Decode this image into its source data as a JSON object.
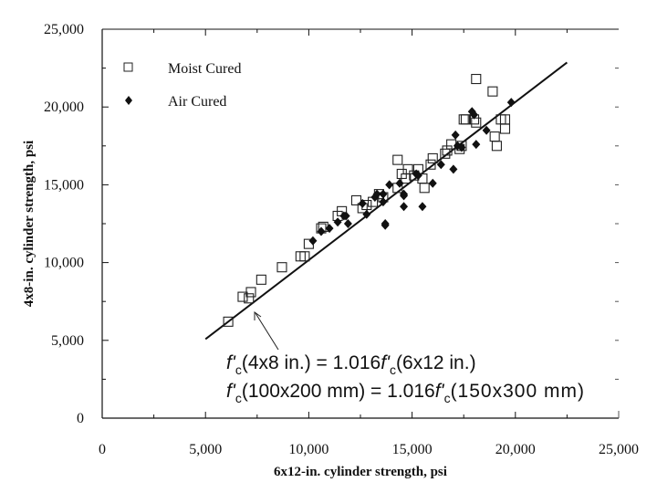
{
  "chart_data": {
    "type": "scatter",
    "title": "",
    "xlabel": "6x12-in. cylinder strength, psi",
    "ylabel": "4x8-in. cylinder strength, psi",
    "xlim": [
      0,
      25000
    ],
    "ylim": [
      0,
      25000
    ],
    "x_ticks": [
      "0",
      "5,000",
      "10,000",
      "15,000",
      "20,000",
      "25,000"
    ],
    "y_ticks": [
      "0",
      "5,000",
      "10,000",
      "15,000",
      "20,000",
      "25,000"
    ],
    "grid": false,
    "legend_position": "upper-left",
    "series": [
      {
        "name": "Moist Cured",
        "marker": "open-square",
        "points": [
          [
            6100,
            6200
          ],
          [
            6800,
            7800
          ],
          [
            7100,
            7700
          ],
          [
            7200,
            8100
          ],
          [
            7700,
            8900
          ],
          [
            8700,
            9700
          ],
          [
            9600,
            10400
          ],
          [
            9800,
            10400
          ],
          [
            10000,
            11200
          ],
          [
            10600,
            12200
          ],
          [
            10700,
            12300
          ],
          [
            11400,
            13000
          ],
          [
            11600,
            13300
          ],
          [
            12300,
            14000
          ],
          [
            12600,
            13500
          ],
          [
            12800,
            13700
          ],
          [
            13100,
            13900
          ],
          [
            13400,
            14400
          ],
          [
            13600,
            14200
          ],
          [
            14300,
            14800
          ],
          [
            14300,
            16600
          ],
          [
            14500,
            15700
          ],
          [
            14700,
            15400
          ],
          [
            14800,
            16000
          ],
          [
            15100,
            15600
          ],
          [
            15300,
            16000
          ],
          [
            15500,
            15400
          ],
          [
            15600,
            14800
          ],
          [
            16000,
            16700
          ],
          [
            15900,
            16300
          ],
          [
            16600,
            17000
          ],
          [
            16900,
            17600
          ],
          [
            17300,
            17300
          ],
          [
            17500,
            19200
          ],
          [
            18000,
            19200
          ],
          [
            18100,
            21800
          ],
          [
            18900,
            21000
          ],
          [
            19000,
            18100
          ],
          [
            19300,
            19200
          ],
          [
            19500,
            18600
          ],
          [
            19500,
            19200
          ],
          [
            19100,
            17500
          ],
          [
            16700,
            17200
          ],
          [
            17400,
            17500
          ],
          [
            18100,
            19000
          ],
          [
            17600,
            19200
          ]
        ]
      },
      {
        "name": "Air Cured",
        "marker": "filled-diamond",
        "points": [
          [
            10200,
            11400
          ],
          [
            10600,
            12000
          ],
          [
            11000,
            12200
          ],
          [
            11400,
            12600
          ],
          [
            11700,
            13000
          ],
          [
            11800,
            13000
          ],
          [
            11900,
            12500
          ],
          [
            12600,
            13800
          ],
          [
            12800,
            13100
          ],
          [
            13200,
            14200
          ],
          [
            13300,
            14400
          ],
          [
            13600,
            14400
          ],
          [
            13600,
            13900
          ],
          [
            13700,
            12500
          ],
          [
            13900,
            15000
          ],
          [
            14400,
            15100
          ],
          [
            14600,
            14400
          ],
          [
            14600,
            14300
          ],
          [
            15200,
            15700
          ],
          [
            15300,
            15600
          ],
          [
            15500,
            13600
          ],
          [
            16000,
            15100
          ],
          [
            16400,
            16300
          ],
          [
            17000,
            16000
          ],
          [
            17100,
            18200
          ],
          [
            17200,
            17500
          ],
          [
            17400,
            17400
          ],
          [
            17900,
            19700
          ],
          [
            18000,
            19500
          ],
          [
            18100,
            17600
          ],
          [
            18600,
            18500
          ],
          [
            19800,
            20300
          ],
          [
            13700,
            12400
          ],
          [
            14600,
            13600
          ]
        ]
      }
    ],
    "fit_line": {
      "label": "f'c(4x8 in.) = 1.016 f'c(6x12 in.)",
      "slope": 1.016,
      "x_start": 5000,
      "x_end": 22500
    },
    "annotations": [
      "f'c(4x8 in.) = 1.016f'c(6x12 in.)",
      "f'c(100x200 mm) = 1.016f'c(150x300 mm)"
    ]
  },
  "axes": {
    "x_title": "6x12-in. cylinder strength, psi",
    "y_title": "4x8-in. cylinder strength, psi",
    "x_tick_labels": [
      "0",
      "5,000",
      "10,000",
      "15,000",
      "20,000",
      "25,000"
    ],
    "y_tick_labels": [
      "0",
      "5,000",
      "10,000",
      "15,000",
      "20,000",
      "25,000"
    ]
  },
  "legend": {
    "items": [
      {
        "label": "Moist Cured",
        "icon": "open-square-icon"
      },
      {
        "label": "Air Cured",
        "icon": "filled-diamond-icon"
      }
    ]
  },
  "equation": {
    "line1": {
      "f": "f'",
      "sub": "c",
      "a": "(4x8 in.) = 1.016",
      "f2": "f'",
      "sub2": "c",
      "b": "(6x12 in.)"
    },
    "line2": {
      "f": "f'",
      "sub": "c",
      "a": "(100x200 mm) = 1.016",
      "f2": "f'",
      "sub2": "c",
      "b": "(150x300 mm)"
    }
  },
  "colors": {
    "ink": "#111111",
    "background": "#ffffff"
  }
}
